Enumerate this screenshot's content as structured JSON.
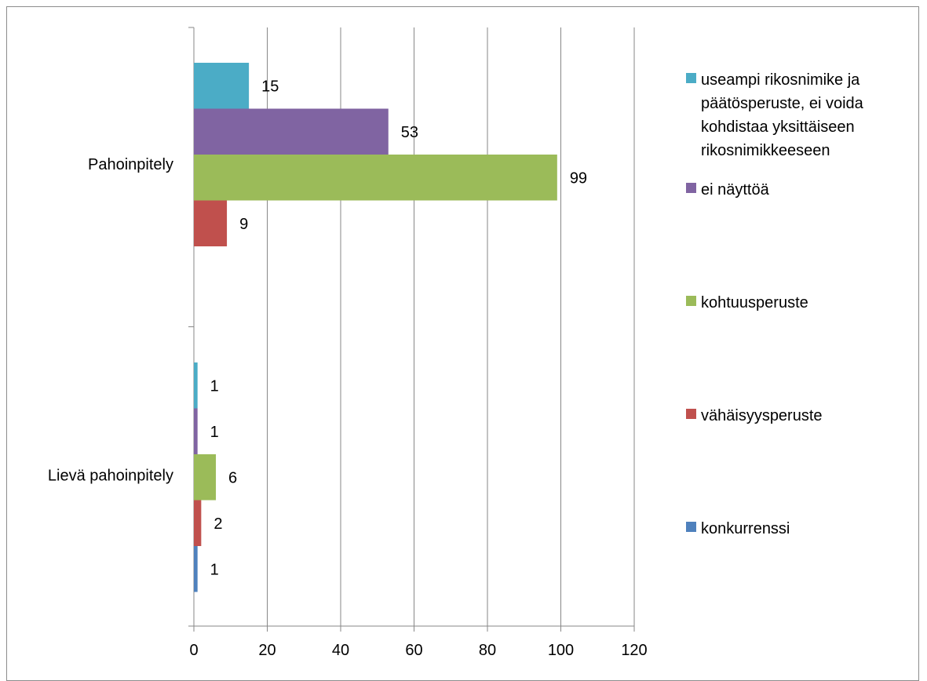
{
  "chart_data": {
    "type": "bar",
    "orientation": "horizontal",
    "categories": [
      "Pahoinpitely",
      "Lievä pahoinpitely"
    ],
    "series": [
      {
        "name": "useampi rikosnimike ja päätösperuste, ei voida kohdistaa yksittäiseen rikosnimikkeeseen",
        "values": [
          15,
          1
        ],
        "color": "#4bacc6"
      },
      {
        "name": "ei näyttöä",
        "values": [
          53,
          1
        ],
        "color": "#8064a2"
      },
      {
        "name": "kohtuusperuste",
        "values": [
          99,
          6
        ],
        "color": "#9bbb59"
      },
      {
        "name": "vähäisyysperuste",
        "values": [
          9,
          2
        ],
        "color": "#c0504d"
      },
      {
        "name": "konkurrenssi",
        "values": [
          null,
          1
        ],
        "color": "#4f81bd"
      }
    ],
    "xticks": [
      "0",
      "20",
      "40",
      "60",
      "80",
      "100",
      "120"
    ],
    "xlim": [
      0,
      120
    ],
    "grid": "vertical",
    "legend": "right",
    "data_labels": true
  }
}
